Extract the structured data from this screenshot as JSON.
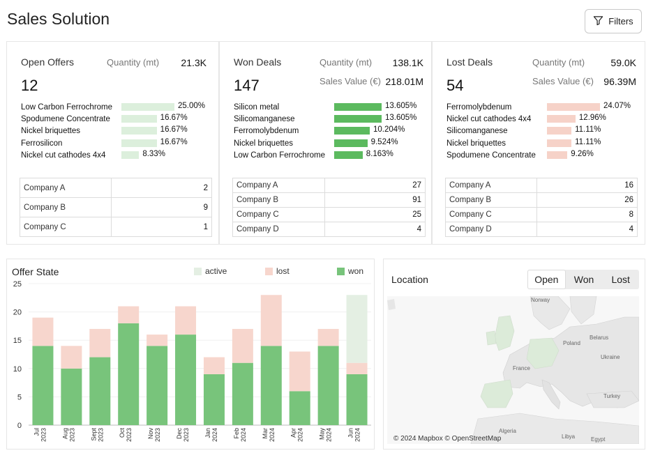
{
  "header": {
    "title": "Sales Solution",
    "filters_label": "Filters"
  },
  "open_offers": {
    "title": "Open Offers",
    "count": "12",
    "quantity_label": "Quantity (mt)",
    "quantity_value": "21.3K",
    "bar_color": "#dcefdc",
    "items": [
      {
        "label": "Low Carbon Ferrochrome",
        "pct_text": "25.00%",
        "pct": 25.0
      },
      {
        "label": "Spodumene Concentrate",
        "pct_text": "16.67%",
        "pct": 16.67
      },
      {
        "label": "Nickel briquettes",
        "pct_text": "16.67%",
        "pct": 16.67
      },
      {
        "label": "Ferrosilicon",
        "pct_text": "16.67%",
        "pct": 16.67
      },
      {
        "label": "Nickel cut cathodes 4x4",
        "pct_text": "8.33%",
        "pct": 8.33
      }
    ],
    "companies": [
      {
        "name": "Company A",
        "value": "2"
      },
      {
        "name": "Company B",
        "value": "9"
      },
      {
        "name": "Company C",
        "value": "1"
      }
    ]
  },
  "won_deals": {
    "title": "Won Deals",
    "count": "147",
    "quantity_label": "Quantity (mt)",
    "quantity_value": "138.1K",
    "sales_label": "Sales Value (€)",
    "sales_value": "218.01M",
    "bar_color": "#5cba5f",
    "items": [
      {
        "label": "Silicon metal",
        "pct_text": "13.605%",
        "pct": 13.605
      },
      {
        "label": "Silicomanganese",
        "pct_text": "13.605%",
        "pct": 13.605
      },
      {
        "label": "Ferromolybdenum",
        "pct_text": "10.204%",
        "pct": 10.204
      },
      {
        "label": "Nickel briquettes",
        "pct_text": "9.524%",
        "pct": 9.524
      },
      {
        "label": "Low Carbon Ferrochrome",
        "pct_text": "8.163%",
        "pct": 8.163
      }
    ],
    "companies": [
      {
        "name": "Company A",
        "value": "27"
      },
      {
        "name": "Company B",
        "value": "91"
      },
      {
        "name": "Company C",
        "value": "25"
      },
      {
        "name": "Company D",
        "value": "4"
      }
    ]
  },
  "lost_deals": {
    "title": "Lost Deals",
    "count": "54",
    "quantity_label": "Quantity (mt)",
    "quantity_value": "59.0K",
    "sales_label": "Sales Value (€)",
    "sales_value": "96.39M",
    "bar_color": "#f6d2c8",
    "items": [
      {
        "label": "Ferromolybdenum",
        "pct_text": "24.07%",
        "pct": 24.07
      },
      {
        "label": "Nickel cut cathodes 4x4",
        "pct_text": "12.96%",
        "pct": 12.96
      },
      {
        "label": "Silicomanganese",
        "pct_text": "11.11%",
        "pct": 11.11
      },
      {
        "label": "Nickel briquettes",
        "pct_text": "11.11%",
        "pct": 11.11
      },
      {
        "label": "Spodumene Concentrate",
        "pct_text": "9.26%",
        "pct": 9.26
      }
    ],
    "companies": [
      {
        "name": "Company A",
        "value": "16"
      },
      {
        "name": "Company B",
        "value": "26"
      },
      {
        "name": "Company C",
        "value": "8"
      },
      {
        "name": "Company D",
        "value": "4"
      }
    ]
  },
  "offer_state": {
    "title": "Offer State",
    "legend": [
      {
        "name": "active",
        "color": "#e4efe3"
      },
      {
        "name": "lost",
        "color": "#f7d6cd"
      },
      {
        "name": "won",
        "color": "#78c47b"
      }
    ]
  },
  "chart_data": {
    "type": "bar",
    "stacked": true,
    "title": "Offer State",
    "categories": [
      "Jul 2023",
      "Aug 2023",
      "Sept 2023",
      "Oct 2023",
      "Nov 2023",
      "Dec 2023",
      "Jan 2024",
      "Feb 2024",
      "Mar 2024",
      "Apr 2024",
      "May 2024",
      "Jun 2024"
    ],
    "category_lines": [
      [
        "Jul",
        "2023"
      ],
      [
        "Aug",
        "2023"
      ],
      [
        "Sept",
        "2023"
      ],
      [
        "Oct",
        "2023"
      ],
      [
        "Nov",
        "2023"
      ],
      [
        "Dec",
        "2023"
      ],
      [
        "Jan",
        "2024"
      ],
      [
        "Feb",
        "2024"
      ],
      [
        "Mar",
        "2024"
      ],
      [
        "Apr",
        "2024"
      ],
      [
        "May",
        "2024"
      ],
      [
        "Jun",
        "2024"
      ]
    ],
    "series": [
      {
        "name": "won",
        "color": "#78c47b",
        "values": [
          14,
          10,
          12,
          18,
          14,
          16,
          9,
          11,
          14,
          6,
          14,
          9
        ]
      },
      {
        "name": "lost",
        "color": "#f7d6cd",
        "values": [
          5,
          4,
          5,
          3,
          2,
          5,
          3,
          6,
          9,
          7,
          3,
          2
        ]
      },
      {
        "name": "active",
        "color": "#e4efe3",
        "values": [
          0,
          0,
          0,
          0,
          0,
          0,
          0,
          0,
          0,
          0,
          0,
          12
        ]
      }
    ],
    "yticks": [
      0,
      5,
      10,
      15,
      20,
      25
    ],
    "ylim": [
      0,
      25
    ],
    "grid": true,
    "legend_position": "top-right"
  },
  "location": {
    "title": "Location",
    "tabs": [
      {
        "label": "Open",
        "active": true
      },
      {
        "label": "Won",
        "active": false
      },
      {
        "label": "Lost",
        "active": false
      }
    ],
    "map_labels": [
      "Norway",
      "Poland",
      "Belarus",
      "Ukraine",
      "France",
      "Turkey",
      "Algeria",
      "Libya",
      "Egypt"
    ],
    "attribution": "© 2024 Mapbox  © OpenStreetMap"
  }
}
